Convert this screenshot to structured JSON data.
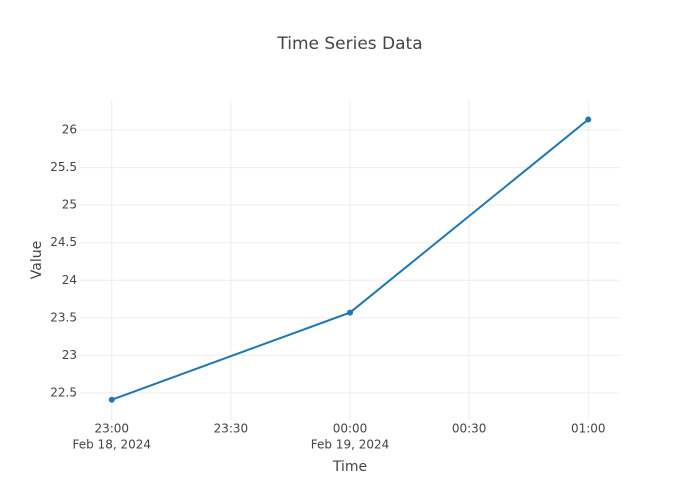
{
  "chart_data": {
    "type": "line",
    "title": "Time Series Data",
    "x_label": "Time",
    "y_label": "Value",
    "x": [
      "2024-02-18 23:00",
      "2024-02-19 00:00",
      "2024-02-19 01:00"
    ],
    "series": [
      {
        "name": "Value",
        "color": "#1f77b4",
        "values": [
          22.41,
          23.57,
          26.14
        ]
      }
    ],
    "xlim": [
      "2024-02-18 22:52",
      "2024-02-19 01:08"
    ],
    "xticks": [
      {
        "value": "2024-02-18 23:00",
        "label": "23:00",
        "date": "Feb 18, 2024"
      },
      {
        "value": "2024-02-18 23:30",
        "label": "23:30"
      },
      {
        "value": "2024-02-19 00:00",
        "label": "00:00",
        "date": "Feb 19, 2024"
      },
      {
        "value": "2024-02-19 00:30",
        "label": "00:30"
      },
      {
        "value": "2024-02-19 01:00",
        "label": "01:00"
      }
    ],
    "ylim": [
      22.14,
      26.4
    ],
    "yticks": [
      22.5,
      23,
      23.5,
      24,
      24.5,
      25,
      25.5,
      26
    ],
    "grid": true
  }
}
